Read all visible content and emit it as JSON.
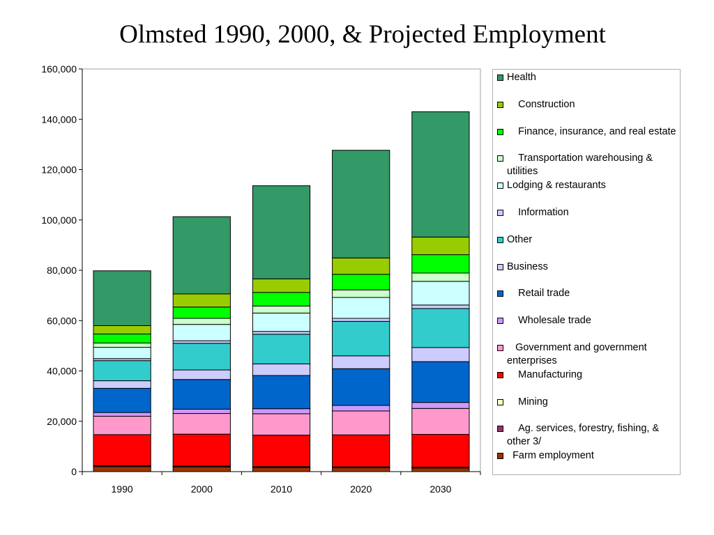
{
  "chart_data": {
    "type": "bar",
    "stacked": true,
    "title": "Olmsted 1990, 2000, & Projected Employment",
    "xlabel": "",
    "ylabel": "",
    "ylim": [
      0,
      160000
    ],
    "yticks": [
      "0",
      "20,000",
      "40,000",
      "60,000",
      "80,000",
      "100,000",
      "120,000",
      "140,000",
      "160,000"
    ],
    "grid": false,
    "legend_position": "right",
    "categories": [
      "1990",
      "2000",
      "2010",
      "2020",
      "2030"
    ],
    "series": [
      {
        "name": "Farm employment",
        "color": "#993300",
        "values": [
          2000,
          1800,
          1600,
          1500,
          1400
        ]
      },
      {
        "name": "Ag. services, forestry, fishing, & other 3/",
        "color": "#993366",
        "values": [
          300,
          300,
          300,
          300,
          300
        ]
      },
      {
        "name": "Mining",
        "color": "#ffffcc",
        "values": [
          100,
          100,
          100,
          100,
          100
        ]
      },
      {
        "name": "Manufacturing",
        "color": "#ff0000",
        "values": [
          12300,
          12700,
          12500,
          12700,
          13000
        ]
      },
      {
        "name": "Government and government enterprises",
        "color": "#ff99cc",
        "values": [
          7300,
          8200,
          8500,
          9500,
          10300
        ]
      },
      {
        "name": "Wholesale trade",
        "color": "#cc99ff",
        "values": [
          1500,
          1700,
          2000,
          2200,
          2400
        ]
      },
      {
        "name": "Retail trade",
        "color": "#0066cc",
        "values": [
          9600,
          11800,
          13200,
          14600,
          16200
        ]
      },
      {
        "name": "Business",
        "color": "#ccccff",
        "values": [
          3000,
          3800,
          4600,
          5100,
          5600
        ]
      },
      {
        "name": "Other",
        "color": "#33cccc",
        "values": [
          8000,
          10600,
          11800,
          13700,
          15500
        ]
      },
      {
        "name": "Information",
        "color": "#ccccff",
        "values": [
          800,
          1000,
          1100,
          1200,
          1400
        ]
      },
      {
        "name": "Lodging & restaurants",
        "color": "#ccffff",
        "values": [
          4500,
          6500,
          7300,
          8300,
          9400
        ]
      },
      {
        "name": "Transportation warehousing & utilities",
        "color": "#ccffcc",
        "values": [
          1700,
          2400,
          2800,
          3000,
          3300
        ]
      },
      {
        "name": "Finance, insurance, and real estate",
        "color": "#00ff00",
        "values": [
          3600,
          4500,
          5400,
          6200,
          7300
        ]
      },
      {
        "name": "Construction",
        "color": "#99cc00",
        "values": [
          3300,
          5200,
          5400,
          6500,
          7000
        ]
      },
      {
        "name": "Health",
        "color": "#339966",
        "values": [
          21800,
          30700,
          37000,
          42800,
          49800
        ]
      }
    ]
  },
  "legend": {
    "entries": [
      {
        "label": "Health",
        "color": "#339966"
      },
      {
        "label": "    Construction",
        "color": "#99cc00"
      },
      {
        "label": "    Finance, insurance, and real estate",
        "color": "#00ff00"
      },
      {
        "label": "    Transportation warehousing & utilities",
        "color": "#ccffcc"
      },
      {
        "label": "Lodging & restaurants",
        "color": "#ccffff"
      },
      {
        "label": "    Information",
        "color": "#ccccff"
      },
      {
        "label": "Other",
        "color": "#33cccc"
      },
      {
        "label": "Business",
        "color": "#ccccff"
      },
      {
        "label": "    Retail trade",
        "color": "#0066cc"
      },
      {
        "label": "    Wholesale trade",
        "color": "#cc99ff"
      },
      {
        "label": "   Government and government enterprises",
        "color": "#ff99cc"
      },
      {
        "label": "    Manufacturing",
        "color": "#ff0000"
      },
      {
        "label": "    Mining",
        "color": "#ffffcc"
      },
      {
        "label": "    Ag. services, forestry, fishing, & other 3/",
        "color": "#993366"
      },
      {
        "label": "  Farm employment",
        "color": "#993300"
      }
    ]
  }
}
